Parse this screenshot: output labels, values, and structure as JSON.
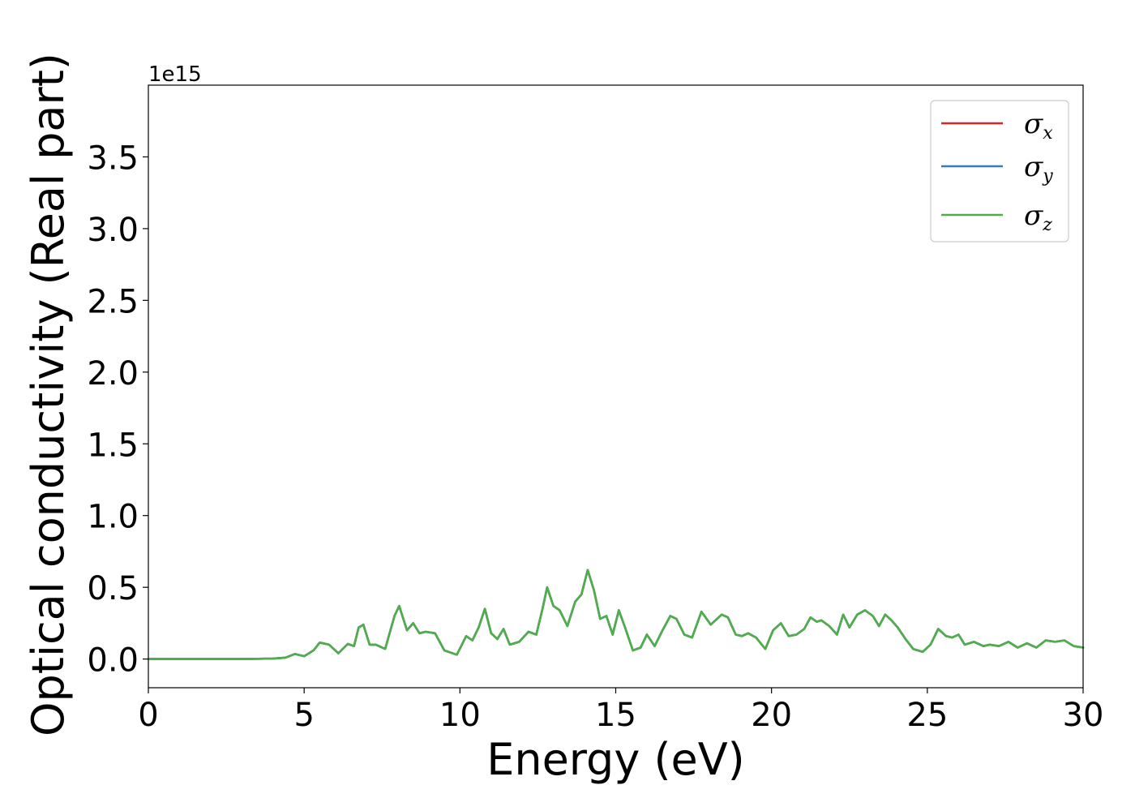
{
  "chart_data": {
    "type": "line",
    "xlabel": "Energy (eV)",
    "ylabel": "Optical conductivity (Real part)",
    "y_offset_label": "1e15",
    "xlim": [
      0,
      30
    ],
    "ylim": [
      -0.2,
      4.0
    ],
    "xticks": [
      0,
      5,
      10,
      15,
      20,
      25,
      30
    ],
    "xtick_labels": [
      "0",
      "5",
      "10",
      "15",
      "20",
      "25",
      "30"
    ],
    "yticks": [
      0.0,
      0.5,
      1.0,
      1.5,
      2.0,
      2.5,
      3.0,
      3.5
    ],
    "ytick_labels": [
      "0.0",
      "0.5",
      "1.0",
      "1.5",
      "2.0",
      "2.5",
      "3.0",
      "3.5"
    ],
    "grid": false,
    "legend_position": "top-right",
    "x": [
      0,
      1,
      2,
      3,
      4,
      4.4,
      4.7,
      5.0,
      5.3,
      5.5,
      5.8,
      6.1,
      6.4,
      6.6,
      6.75,
      6.9,
      7.1,
      7.3,
      7.6,
      7.9,
      8.05,
      8.3,
      8.5,
      8.7,
      8.9,
      9.2,
      9.5,
      9.9,
      10.2,
      10.4,
      10.6,
      10.8,
      11.0,
      11.2,
      11.4,
      11.6,
      11.9,
      12.2,
      12.45,
      12.65,
      12.8,
      13.0,
      13.2,
      13.45,
      13.7,
      13.9,
      14.1,
      14.3,
      14.5,
      14.7,
      14.9,
      15.1,
      15.3,
      15.55,
      15.8,
      16.0,
      16.25,
      16.5,
      16.75,
      16.95,
      17.2,
      17.45,
      17.75,
      18.05,
      18.4,
      18.6,
      18.85,
      19.05,
      19.25,
      19.5,
      19.8,
      20.05,
      20.3,
      20.55,
      20.8,
      21.05,
      21.25,
      21.45,
      21.6,
      21.85,
      22.1,
      22.3,
      22.5,
      22.75,
      23.0,
      23.25,
      23.45,
      23.65,
      23.85,
      24.05,
      24.3,
      24.55,
      24.85,
      25.1,
      25.35,
      25.6,
      25.8,
      26.0,
      26.2,
      26.5,
      26.8,
      27.0,
      27.3,
      27.6,
      27.9,
      28.2,
      28.5,
      28.8,
      29.1,
      29.4,
      29.7,
      30.0
    ],
    "series": [
      {
        "name": "σx",
        "color": "#d62728",
        "values": [
          0,
          0,
          0,
          0,
          0.003,
          0.01,
          0.035,
          0.02,
          0.06,
          0.115,
          0.1,
          0.04,
          0.105,
          0.09,
          0.22,
          0.24,
          0.1,
          0.1,
          0.07,
          0.3,
          0.37,
          0.2,
          0.25,
          0.18,
          0.19,
          0.18,
          0.06,
          0.03,
          0.16,
          0.13,
          0.22,
          0.35,
          0.18,
          0.14,
          0.21,
          0.1,
          0.12,
          0.19,
          0.17,
          0.35,
          0.5,
          0.37,
          0.34,
          0.23,
          0.4,
          0.45,
          0.62,
          0.48,
          0.28,
          0.3,
          0.17,
          0.34,
          0.22,
          0.06,
          0.08,
          0.17,
          0.09,
          0.2,
          0.3,
          0.28,
          0.17,
          0.15,
          0.33,
          0.24,
          0.31,
          0.29,
          0.17,
          0.16,
          0.18,
          0.15,
          0.07,
          0.2,
          0.25,
          0.16,
          0.17,
          0.21,
          0.29,
          0.26,
          0.27,
          0.23,
          0.17,
          0.31,
          0.22,
          0.31,
          0.34,
          0.3,
          0.23,
          0.31,
          0.27,
          0.22,
          0.14,
          0.07,
          0.05,
          0.1,
          0.21,
          0.16,
          0.15,
          0.17,
          0.1,
          0.12,
          0.09,
          0.1,
          0.09,
          0.12,
          0.08,
          0.11,
          0.08,
          0.13,
          0.12,
          0.13,
          0.09,
          0.08
        ]
      },
      {
        "name": "σy",
        "color": "#377eb8",
        "values": [
          0,
          0,
          0,
          0,
          0.003,
          0.01,
          0.035,
          0.02,
          0.06,
          0.115,
          0.1,
          0.04,
          0.105,
          0.09,
          0.22,
          0.24,
          0.1,
          0.1,
          0.07,
          0.3,
          0.37,
          0.2,
          0.25,
          0.18,
          0.19,
          0.18,
          0.06,
          0.03,
          0.16,
          0.13,
          0.22,
          0.35,
          0.18,
          0.14,
          0.21,
          0.1,
          0.12,
          0.19,
          0.17,
          0.35,
          0.5,
          0.37,
          0.34,
          0.23,
          0.4,
          0.45,
          0.62,
          0.48,
          0.28,
          0.3,
          0.17,
          0.34,
          0.22,
          0.06,
          0.08,
          0.17,
          0.09,
          0.2,
          0.3,
          0.28,
          0.17,
          0.15,
          0.33,
          0.24,
          0.31,
          0.29,
          0.17,
          0.16,
          0.18,
          0.15,
          0.07,
          0.2,
          0.25,
          0.16,
          0.17,
          0.21,
          0.29,
          0.26,
          0.27,
          0.23,
          0.17,
          0.31,
          0.22,
          0.31,
          0.34,
          0.3,
          0.23,
          0.31,
          0.27,
          0.22,
          0.14,
          0.07,
          0.05,
          0.1,
          0.21,
          0.16,
          0.15,
          0.17,
          0.1,
          0.12,
          0.09,
          0.1,
          0.09,
          0.12,
          0.08,
          0.11,
          0.08,
          0.13,
          0.12,
          0.13,
          0.09,
          0.08
        ]
      },
      {
        "name": "σz",
        "color": "#4daf4a",
        "values": [
          0,
          0,
          0,
          0,
          0.003,
          0.01,
          0.035,
          0.02,
          0.06,
          0.115,
          0.1,
          0.04,
          0.105,
          0.09,
          0.22,
          0.24,
          0.1,
          0.1,
          0.07,
          0.3,
          0.37,
          0.2,
          0.25,
          0.18,
          0.19,
          0.18,
          0.06,
          0.03,
          0.16,
          0.13,
          0.22,
          0.35,
          0.18,
          0.14,
          0.21,
          0.1,
          0.12,
          0.19,
          0.17,
          0.35,
          0.5,
          0.37,
          0.34,
          0.23,
          0.4,
          0.45,
          0.62,
          0.48,
          0.28,
          0.3,
          0.17,
          0.34,
          0.22,
          0.06,
          0.08,
          0.17,
          0.09,
          0.2,
          0.3,
          0.28,
          0.17,
          0.15,
          0.33,
          0.24,
          0.31,
          0.29,
          0.17,
          0.16,
          0.18,
          0.15,
          0.07,
          0.2,
          0.25,
          0.16,
          0.17,
          0.21,
          0.29,
          0.26,
          0.27,
          0.23,
          0.17,
          0.31,
          0.22,
          0.31,
          0.34,
          0.3,
          0.23,
          0.31,
          0.27,
          0.22,
          0.14,
          0.07,
          0.05,
          0.1,
          0.21,
          0.16,
          0.15,
          0.17,
          0.1,
          0.12,
          0.09,
          0.1,
          0.09,
          0.12,
          0.08,
          0.11,
          0.08,
          0.13,
          0.12,
          0.13,
          0.09,
          0.08
        ]
      }
    ]
  }
}
